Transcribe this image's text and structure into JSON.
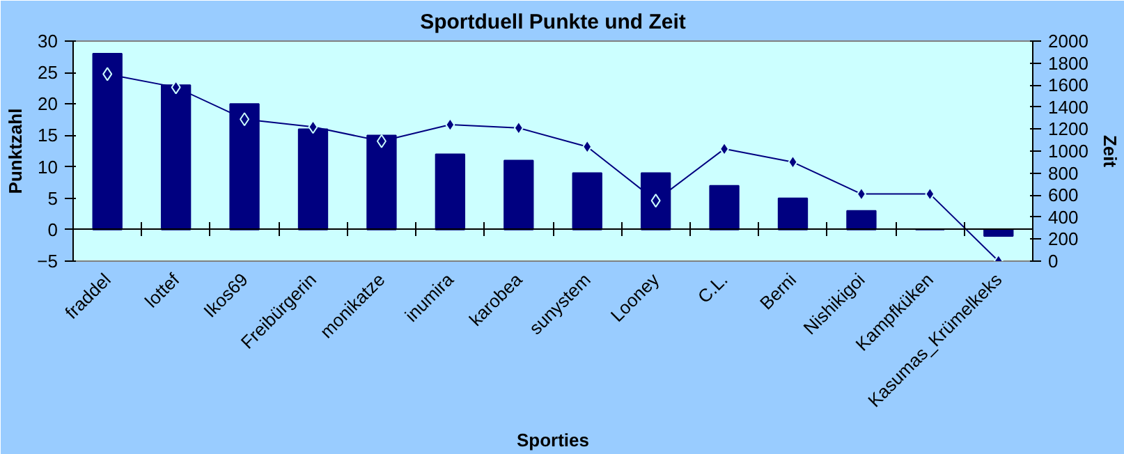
{
  "chart_data": {
    "type": "bar",
    "title": "Sportduell Punkte und Zeit",
    "xlabel": "Sporties",
    "ylabel": "Punktzahl",
    "y2label": "Zeit",
    "categories": [
      "fraddel",
      "lottef",
      "Ikos69",
      "Freibürgerin",
      "monikatze",
      "inumira",
      "karobea",
      "sunystem",
      "Looney",
      "C.L.",
      "Berni",
      "Nishikigoi",
      "Kampfküken",
      "Kasumas_Krümelkeks"
    ],
    "series": [
      {
        "color": "#000080",
        "values": [
          28,
          23,
          20,
          16,
          15,
          12,
          11,
          9,
          9,
          7,
          5,
          3,
          0,
          -1
        ]
      },
      {
        "type": "line",
        "axis": "y2",
        "color": "#000080",
        "marker": "diamond",
        "line_style": "solid",
        "values": [
          1700,
          1580,
          1290,
          1220,
          1090,
          1240,
          1210,
          1040,
          550,
          1020,
          900,
          610,
          610,
          0
        ]
      }
    ],
    "ylim": [
      -5,
      30
    ],
    "yticks": [
      -5,
      0,
      5,
      10,
      15,
      20,
      25,
      30
    ],
    "y2lim": [
      0,
      2000
    ],
    "y2ticks": [
      0,
      200,
      400,
      600,
      800,
      1000,
      1200,
      1400,
      1600,
      1800,
      2000
    ]
  }
}
